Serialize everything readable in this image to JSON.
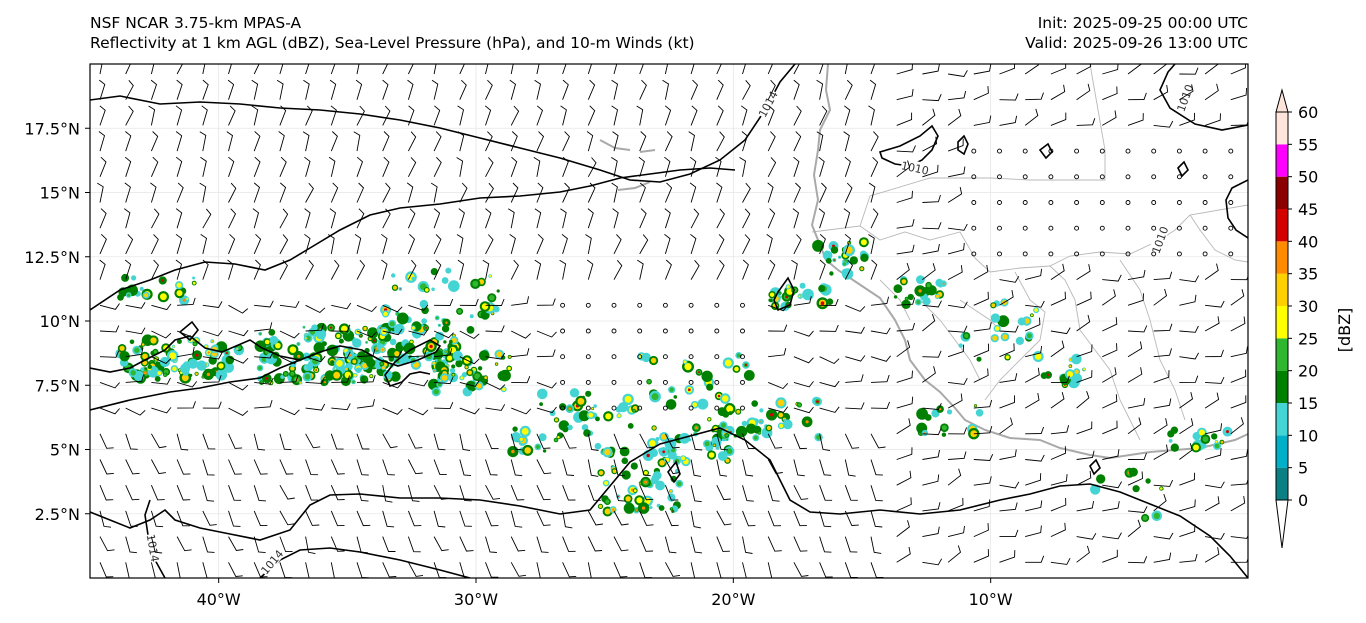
{
  "header": {
    "title_line1": "NSF NCAR 3.75-km MPAS-A",
    "title_line2": "Reflectivity at 1 km AGL (dBZ), Sea-Level Pressure (hPa), and 10-m Winds (kt)",
    "init": "Init: 2025-09-25 00:00 UTC",
    "valid": "Valid: 2025-09-26 13:00 UTC"
  },
  "map": {
    "lon_range": [
      -45,
      0
    ],
    "lat_range": [
      0,
      20
    ],
    "lat_ticks": [
      {
        "value": 17.5,
        "label": "17.5°N"
      },
      {
        "value": 15,
        "label": "15°N"
      },
      {
        "value": 12.5,
        "label": "12.5°N"
      },
      {
        "value": 10,
        "label": "10°N"
      },
      {
        "value": 7.5,
        "label": "7.5°N"
      },
      {
        "value": 5,
        "label": "5°N"
      },
      {
        "value": 2.5,
        "label": "2.5°N"
      }
    ],
    "lon_ticks": [
      {
        "value": -40,
        "label": "40°W"
      },
      {
        "value": -30,
        "label": "30°W"
      },
      {
        "value": -20,
        "label": "20°W"
      },
      {
        "value": -10,
        "label": "10°W"
      }
    ],
    "isobar_labels": [
      "1014",
      "1010",
      "1010",
      "1010",
      "1014",
      "1014"
    ],
    "colors": {
      "isobar": "#000000",
      "coastline": "#a9a9a9",
      "borders": "#b0b0b0",
      "barbs": "#000000"
    }
  },
  "colorbar": {
    "unit_label": "[dBZ]",
    "levels": [
      "0",
      "5",
      "10",
      "15",
      "20",
      "25",
      "30",
      "35",
      "40",
      "45",
      "50",
      "55",
      "60"
    ],
    "colors": [
      "#0a7f84",
      "#00b0c8",
      "#44d4d4",
      "#008000",
      "#2fb82f",
      "#ffff00",
      "#ffd000",
      "#ff8c00",
      "#d40000",
      "#8b0000",
      "#ff00ff",
      "#ffe4dc"
    ]
  }
}
